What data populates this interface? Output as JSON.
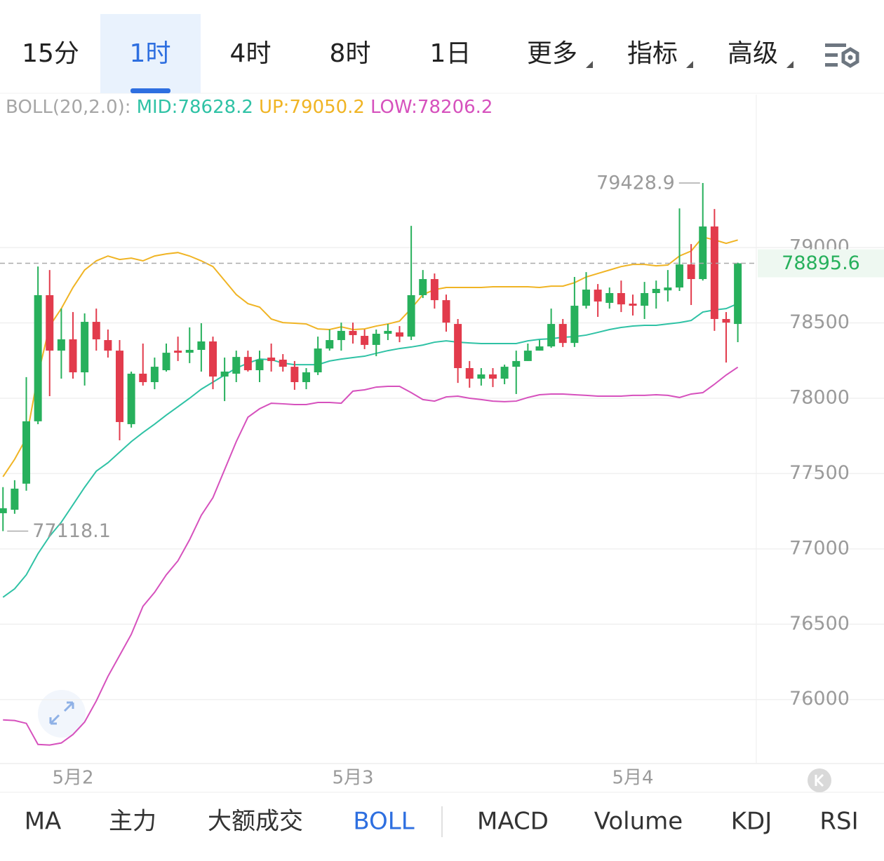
{
  "period_tabs": [
    "15分",
    "1时",
    "4时",
    "8时",
    "1日",
    "更多",
    "指标",
    "高级"
  ],
  "active_period": 1,
  "indicator_tabs": [
    "MA",
    "主力",
    "大额成交",
    "BOLL",
    "MACD",
    "Volume",
    "KDJ",
    "RSI"
  ],
  "active_indicator": 3,
  "chart_data": {
    "type": "candlestick",
    "indicator_title": "BOLL(20,2.0):",
    "indicator_labels": [
      "MID:78628.2",
      "UP:79050.2",
      "LOW:78206.2"
    ],
    "categories": [
      null,
      null,
      null,
      null,
      null,
      null,
      "5月2",
      null,
      null,
      null,
      null,
      null,
      null,
      null,
      null,
      null,
      null,
      null,
      null,
      null,
      null,
      null,
      null,
      null,
      null,
      null,
      null,
      null,
      null,
      null,
      "5月3",
      null,
      null,
      null,
      null,
      null,
      null,
      null,
      null,
      null,
      null,
      null,
      null,
      null,
      null,
      null,
      null,
      null,
      null,
      null,
      null,
      null,
      null,
      null,
      "5月4",
      null,
      null,
      null,
      null,
      null,
      null,
      null,
      null,
      null
    ],
    "open": [
      77237,
      77260,
      77433,
      77847,
      78684,
      78316,
      78391,
      78172,
      78507,
      78386,
      78316,
      77828,
      78163,
      78107,
      78186,
      78316,
      78302,
      78321,
      78377,
      78144,
      78163,
      78274,
      78186,
      78270,
      78256,
      78209,
      78107,
      78172,
      78330,
      78386,
      78447,
      78414,
      78354,
      78428,
      78437,
      78409,
      78684,
      78791,
      78651,
      78493,
      78200,
      78130,
      78158,
      78130,
      78209,
      78247,
      78316,
      78344,
      78493,
      78367,
      78614,
      78721,
      78633,
      78698,
      78628,
      78614,
      78698,
      78716,
      78735,
      78888,
      78791,
      79140,
      78526,
      78493
    ],
    "high": [
      77410,
      77456,
      78140,
      78874,
      78851,
      78595,
      78572,
      78563,
      78595,
      78456,
      78386,
      78177,
      78363,
      78270,
      78363,
      78409,
      78470,
      78498,
      78409,
      78270,
      78316,
      78316,
      78316,
      78363,
      78293,
      78247,
      78200,
      78409,
      78456,
      78502,
      78502,
      78456,
      78456,
      78493,
      78479,
      79144,
      78851,
      78828,
      78688,
      78526,
      78247,
      78200,
      78200,
      78223,
      78316,
      78363,
      78386,
      78595,
      78526,
      78805,
      78837,
      78758,
      78735,
      78781,
      78688,
      78772,
      78781,
      78851,
      79260,
      79023,
      79428.9,
      79256,
      78572,
      78900
    ],
    "low": [
      77118.1,
      77233,
      77386,
      77828,
      78014,
      78130,
      78130,
      78084,
      78316,
      78270,
      77721,
      77805,
      78084,
      78060,
      78177,
      78247,
      78233,
      78177,
      78060,
      77981,
      78107,
      78177,
      78107,
      78177,
      78177,
      78056,
      78060,
      78154,
      78316,
      78316,
      78363,
      78326,
      78279,
      78386,
      78372,
      78386,
      78665,
      78595,
      78442,
      78102,
      78070,
      78084,
      78074,
      78093,
      78028,
      78247,
      78316,
      78335,
      78340,
      78340,
      78595,
      78540,
      78595,
      78572,
      78549,
      78526,
      78595,
      78642,
      78712,
      78619,
      78781,
      78447,
      78237,
      78372
    ],
    "close": [
      77270,
      77400,
      77847,
      78684,
      78316,
      78391,
      78172,
      78507,
      78391,
      78316,
      77842,
      78163,
      78107,
      78209,
      78302,
      78302,
      78321,
      78377,
      78144,
      78177,
      78274,
      78186,
      78256,
      78247,
      78209,
      78107,
      78172,
      78330,
      78386,
      78447,
      78419,
      78354,
      78428,
      78447,
      78409,
      78684,
      78791,
      78651,
      78502,
      78200,
      78130,
      78158,
      78130,
      78209,
      78247,
      78316,
      78344,
      78493,
      78367,
      78614,
      78721,
      78642,
      78698,
      78623,
      78614,
      78698,
      78726,
      78735,
      78888,
      78791,
      79140,
      78526,
      78502,
      78895.6
    ],
    "up_color": "#27b05c",
    "down_color": "#e23b4c",
    "series": [
      {
        "name": "MID",
        "color": "#2fc2a5",
        "values": [
          76679,
          76735,
          76828,
          76968,
          77084,
          77177,
          77293,
          77409,
          77516,
          77572,
          77642,
          77712,
          77772,
          77828,
          77888,
          77944,
          78000,
          78060,
          78107,
          78154,
          78200,
          78233,
          78260,
          78256,
          78233,
          78223,
          78223,
          78223,
          78247,
          78260,
          78270,
          78279,
          78298,
          78316,
          78330,
          78340,
          78353,
          78372,
          78381,
          78372,
          78367,
          78363,
          78363,
          78363,
          78363,
          78381,
          78391,
          78395,
          78405,
          78409,
          78419,
          78437,
          78456,
          78470,
          78479,
          78484,
          78484,
          78493,
          78502,
          78516,
          78572,
          78586,
          78595,
          78628.2
        ]
      },
      {
        "name": "UP",
        "color": "#f0b424",
        "values": [
          77479,
          77595,
          77735,
          78154,
          78479,
          78595,
          78735,
          78851,
          78912,
          78944,
          78921,
          78930,
          78912,
          78944,
          78958,
          78967,
          78944,
          78912,
          78874,
          78781,
          78688,
          78628,
          78605,
          78526,
          78502,
          78498,
          78493,
          78460,
          78456,
          78474,
          78456,
          78460,
          78479,
          78493,
          78512,
          78595,
          78688,
          78721,
          78735,
          78735,
          78735,
          78735,
          78740,
          78740,
          78740,
          78740,
          78735,
          78744,
          78744,
          78767,
          78805,
          78828,
          78851,
          78874,
          78888,
          78888,
          78879,
          78884,
          78944,
          78977,
          79070,
          79051,
          79028,
          79050.2
        ]
      },
      {
        "name": "LOW",
        "color": "#d651bd",
        "values": [
          75865,
          75861,
          75842,
          75702,
          75698,
          75712,
          75768,
          75851,
          75991,
          76154,
          76293,
          76433,
          76619,
          76712,
          76828,
          76921,
          77061,
          77223,
          77340,
          77526,
          77712,
          77874,
          77930,
          77967,
          77963,
          77958,
          77958,
          77972,
          77972,
          77967,
          78047,
          78056,
          78074,
          78079,
          78079,
          78037,
          77991,
          77981,
          78009,
          78014,
          78000,
          77991,
          77981,
          77977,
          77981,
          78005,
          78023,
          78028,
          78028,
          78023,
          78019,
          78014,
          78014,
          78014,
          78019,
          78019,
          78023,
          78019,
          78005,
          78028,
          78037,
          78093,
          78154,
          78206.2
        ]
      }
    ],
    "ylim": [
      75580,
      80015
    ],
    "yticks": [
      76000,
      76500,
      77000,
      77500,
      78000,
      78500,
      79000
    ],
    "grid": true
  }
}
